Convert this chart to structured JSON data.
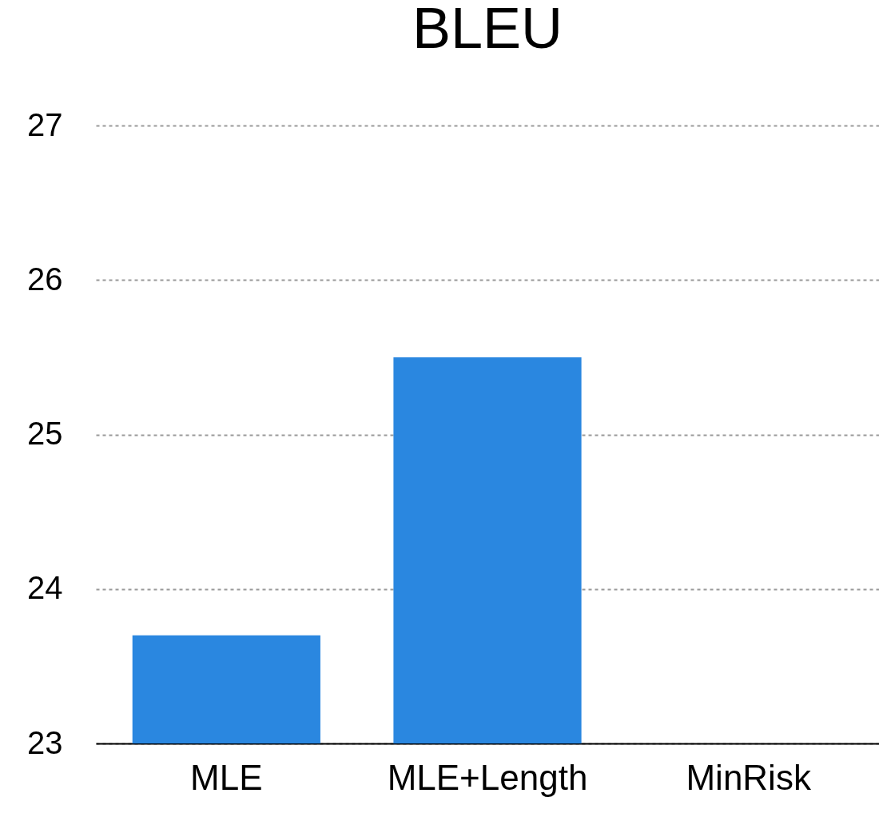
{
  "chart_data": {
    "type": "bar",
    "title": "BLEU",
    "categories": [
      "MLE",
      "MLE+Length",
      "MinRisk"
    ],
    "values": [
      23.7,
      25.5,
      null
    ],
    "color": "#2a87e0",
    "ylim": [
      23,
      27
    ],
    "yticks": [
      23,
      24,
      25,
      26,
      27
    ],
    "grid": "y"
  }
}
